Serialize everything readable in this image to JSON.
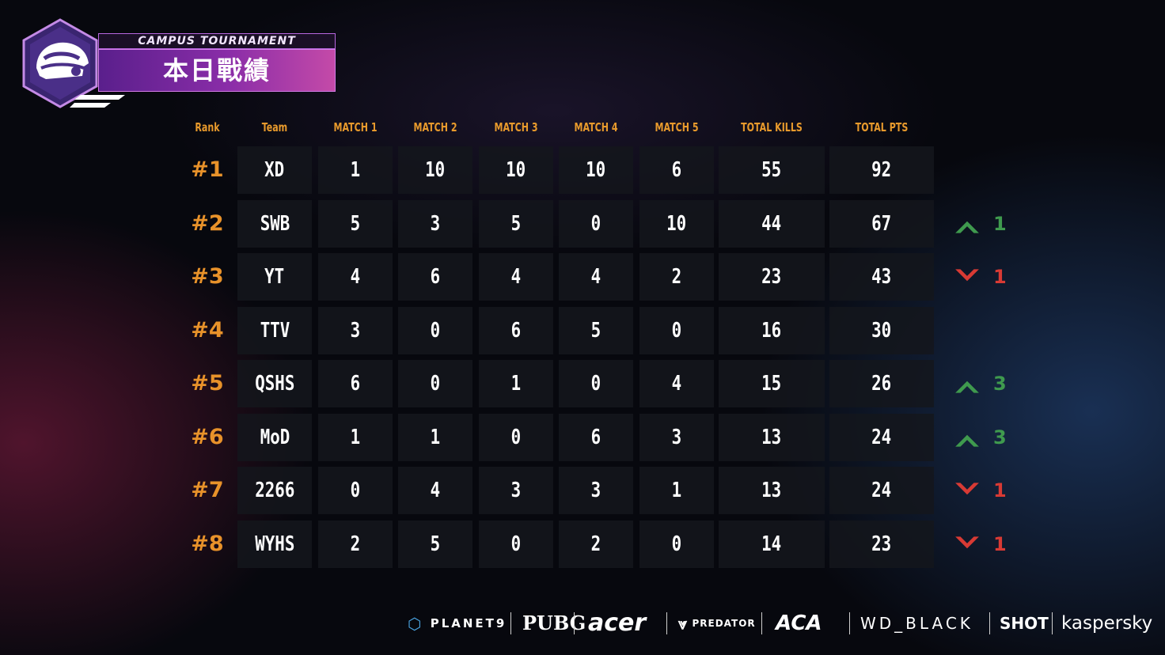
{
  "header": {
    "subtitle": "CAMPUS TOURNAMENT",
    "title": "本日戰績"
  },
  "columns": [
    "Rank",
    "Team",
    "MATCH 1",
    "MATCH 2",
    "MATCH 3",
    "MATCH 4",
    "MATCH 5",
    "TOTAL KILLS",
    "TOTAL PTS"
  ],
  "rows": [
    {
      "rank": "#1",
      "team": "XD",
      "m1": "1",
      "m2": "10",
      "m3": "10",
      "m4": "10",
      "m5": "6",
      "kills": "55",
      "pts": "92",
      "trend": "none",
      "change": ""
    },
    {
      "rank": "#2",
      "team": "SWB",
      "m1": "5",
      "m2": "3",
      "m3": "5",
      "m4": "0",
      "m5": "10",
      "kills": "44",
      "pts": "67",
      "trend": "up",
      "change": "1"
    },
    {
      "rank": "#3",
      "team": "YT",
      "m1": "4",
      "m2": "6",
      "m3": "4",
      "m4": "4",
      "m5": "2",
      "kills": "23",
      "pts": "43",
      "trend": "down",
      "change": "1"
    },
    {
      "rank": "#4",
      "team": "TTV",
      "m1": "3",
      "m2": "0",
      "m3": "6",
      "m4": "5",
      "m5": "0",
      "kills": "16",
      "pts": "30",
      "trend": "none",
      "change": ""
    },
    {
      "rank": "#5",
      "team": "QSHS",
      "m1": "6",
      "m2": "0",
      "m3": "1",
      "m4": "0",
      "m5": "4",
      "kills": "15",
      "pts": "26",
      "trend": "up",
      "change": "3"
    },
    {
      "rank": "#6",
      "team": "MoD",
      "m1": "1",
      "m2": "1",
      "m3": "0",
      "m4": "6",
      "m5": "3",
      "kills": "13",
      "pts": "24",
      "trend": "up",
      "change": "3"
    },
    {
      "rank": "#7",
      "team": "2266",
      "m1": "0",
      "m2": "4",
      "m3": "3",
      "m4": "3",
      "m5": "1",
      "kills": "13",
      "pts": "24",
      "trend": "down",
      "change": "1"
    },
    {
      "rank": "#8",
      "team": "WYHS",
      "m1": "2",
      "m2": "5",
      "m3": "0",
      "m4": "2",
      "m5": "0",
      "kills": "14",
      "pts": "23",
      "trend": "down",
      "change": "1"
    }
  ],
  "colors": {
    "accent": "#e8922a",
    "up": "#3f9a4e",
    "down": "#d83a34",
    "banner": "#8a2da8"
  },
  "sponsors": [
    "PLANET9",
    "PUBG",
    "acer",
    "PREDATOR",
    "ACA",
    "WD_BLACK",
    "SHOT",
    "kaspersky"
  ]
}
